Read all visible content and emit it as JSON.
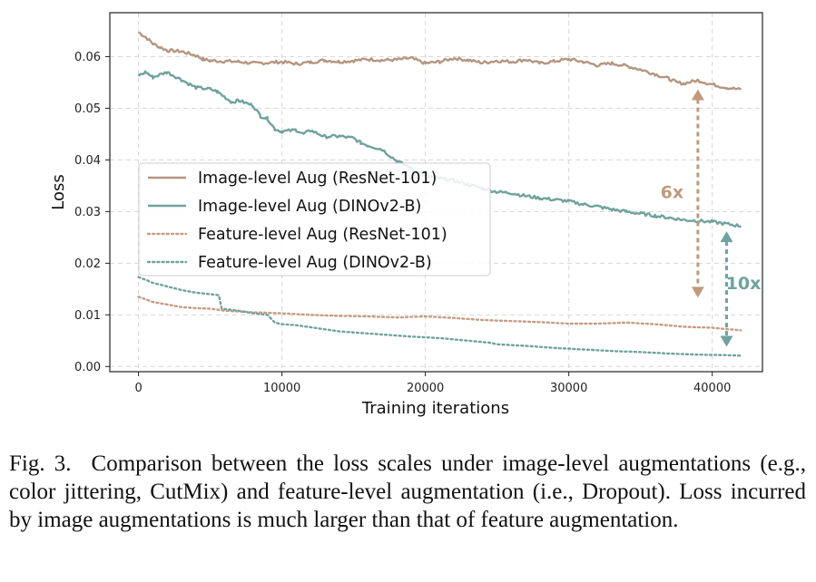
{
  "chart_data": {
    "type": "line",
    "xlabel": "Training iterations",
    "ylabel": "Loss",
    "xlim": [
      -2000,
      43500
    ],
    "ylim": [
      -0.001,
      0.0685
    ],
    "xticks": [
      0,
      10000,
      20000,
      30000,
      40000
    ],
    "xtick_labels": [
      "0",
      "10000",
      "20000",
      "30000",
      "40000"
    ],
    "yticks": [
      0.0,
      0.01,
      0.02,
      0.03,
      0.04,
      0.05,
      0.06
    ],
    "ytick_labels": [
      "0.00",
      "0.01",
      "0.02",
      "0.03",
      "0.04",
      "0.05",
      "0.06"
    ],
    "grid": true,
    "legend_position": "center-left",
    "series": [
      {
        "name": "Image-level Aug (ResNet-101)",
        "color": "#b59680",
        "style": "solid",
        "x": [
          0,
          500,
          1000,
          1500,
          2000,
          3000,
          4000,
          4500,
          5000,
          6000,
          7000,
          8000,
          9000,
          10000,
          11000,
          12000,
          13000,
          14000,
          15000,
          16000,
          17000,
          18000,
          19000,
          20000,
          21000,
          22000,
          23000,
          24000,
          25000,
          26000,
          27000,
          28000,
          29000,
          30000,
          31000,
          32000,
          33000,
          34000,
          35000,
          36000,
          37000,
          37500,
          38000,
          39000,
          40000,
          41000,
          42000
        ],
        "y": [
          0.0647,
          0.0638,
          0.0625,
          0.0618,
          0.0612,
          0.061,
          0.0602,
          0.0595,
          0.0592,
          0.0591,
          0.059,
          0.0587,
          0.0588,
          0.059,
          0.0586,
          0.0589,
          0.0593,
          0.059,
          0.0592,
          0.0595,
          0.0593,
          0.0594,
          0.0597,
          0.0587,
          0.059,
          0.0597,
          0.0593,
          0.0588,
          0.0592,
          0.059,
          0.0594,
          0.0587,
          0.0591,
          0.0595,
          0.059,
          0.0583,
          0.0587,
          0.0582,
          0.0575,
          0.0566,
          0.0557,
          0.055,
          0.0548,
          0.0554,
          0.0546,
          0.054,
          0.0536
        ]
      },
      {
        "name": "Image-level Aug (DINOv2-B)",
        "color": "#6fa39d",
        "style": "solid",
        "x": [
          0,
          500,
          1000,
          2000,
          3000,
          4000,
          5000,
          5500,
          6500,
          7000,
          8000,
          8500,
          9000,
          9500,
          10000,
          11000,
          11500,
          12000,
          13000,
          14000,
          15000,
          15500,
          16000,
          17000,
          18000,
          19000,
          20000,
          21000,
          22000,
          23000,
          24000,
          25000,
          26000,
          27000,
          28000,
          29000,
          30000,
          31000,
          32000,
          33000,
          34000,
          35000,
          36000,
          37000,
          38000,
          39000,
          40000,
          41000,
          42000
        ],
        "y": [
          0.0563,
          0.057,
          0.056,
          0.057,
          0.0555,
          0.054,
          0.0537,
          0.0532,
          0.0512,
          0.0515,
          0.0505,
          0.0485,
          0.048,
          0.046,
          0.0455,
          0.0458,
          0.045,
          0.0457,
          0.0445,
          0.0446,
          0.0442,
          0.0433,
          0.0428,
          0.042,
          0.0398,
          0.0384,
          0.037,
          0.0364,
          0.036,
          0.0352,
          0.0345,
          0.0338,
          0.0336,
          0.033,
          0.0326,
          0.0323,
          0.032,
          0.0314,
          0.031,
          0.0304,
          0.03,
          0.0296,
          0.0292,
          0.0288,
          0.0284,
          0.0282,
          0.028,
          0.0276,
          0.0272
        ]
      },
      {
        "name": "Feature-level Aug (ResNet-101)",
        "color": "#c79c83",
        "style": "dotted",
        "x": [
          0,
          1000,
          2000,
          3000,
          4000,
          5000,
          6000,
          8000,
          10000,
          12000,
          14000,
          16000,
          18000,
          20000,
          22000,
          24000,
          26000,
          28000,
          30000,
          32000,
          34000,
          36000,
          38000,
          40000,
          42000
        ],
        "y": [
          0.0135,
          0.0125,
          0.012,
          0.0115,
          0.0113,
          0.0112,
          0.0108,
          0.0105,
          0.0103,
          0.01,
          0.0098,
          0.0097,
          0.0095,
          0.0097,
          0.0094,
          0.009,
          0.0088,
          0.0086,
          0.0083,
          0.0083,
          0.0085,
          0.0082,
          0.0077,
          0.0075,
          0.007
        ]
      },
      {
        "name": "Feature-level Aug (DINOv2-B)",
        "color": "#6fa39d",
        "style": "dotted",
        "x": [
          0,
          500,
          1000,
          2000,
          3000,
          4000,
          5000,
          5600,
          5800,
          7000,
          8000,
          9000,
          9500,
          10000,
          11000,
          12000,
          13000,
          14000,
          15000,
          17000,
          19000,
          21000,
          23000,
          24500,
          25000,
          27000,
          29000,
          31000,
          33000,
          35000,
          37000,
          39000,
          41000,
          42000
        ],
        "y": [
          0.0173,
          0.0168,
          0.0162,
          0.0155,
          0.0148,
          0.0143,
          0.014,
          0.0138,
          0.0112,
          0.0108,
          0.0103,
          0.01,
          0.0085,
          0.0082,
          0.008,
          0.0076,
          0.0072,
          0.0068,
          0.0066,
          0.0062,
          0.0058,
          0.0055,
          0.005,
          0.0046,
          0.0043,
          0.004,
          0.0036,
          0.0033,
          0.003,
          0.0028,
          0.0025,
          0.0023,
          0.0022,
          0.0021
        ]
      }
    ],
    "annotations": [
      {
        "text": "6x",
        "color": "#c09a7c",
        "x": 39000,
        "y_from": 0.0135,
        "y_to": 0.0535,
        "label_at": [
          38000,
          0.0337
        ]
      },
      {
        "text": "10x",
        "color": "#6fa39d",
        "x": 41000,
        "y_from": 0.004,
        "y_to": 0.026,
        "label_at": [
          43400,
          0.016
        ]
      }
    ]
  },
  "caption": {
    "label": "Fig. 3.",
    "text": "Comparison between the loss scales under image-level augmentations (e.g., color jittering, CutMix) and feature-level augmentation (i.e., Dropout). Loss incurred by image augmentations is much larger than that of feature augmentation."
  }
}
